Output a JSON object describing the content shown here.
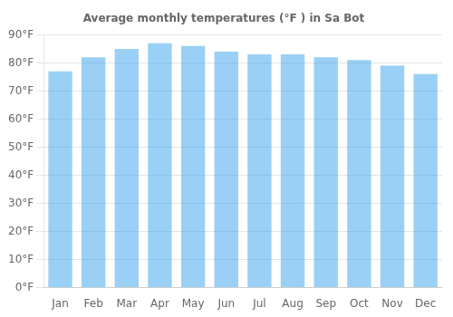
{
  "chart_data": {
    "type": "bar",
    "title": "Average monthly temperatures (°F ) in Sa Bot",
    "categories": [
      "Jan",
      "Feb",
      "Mar",
      "Apr",
      "May",
      "Jun",
      "Jul",
      "Aug",
      "Sep",
      "Oct",
      "Nov",
      "Dec"
    ],
    "values": [
      77,
      82,
      85,
      87,
      86,
      84,
      83,
      83,
      82,
      81,
      79,
      76
    ],
    "ylim": [
      0,
      90
    ],
    "yticks": [
      {
        "value": 0,
        "label": "0°F"
      },
      {
        "value": 10,
        "label": "10°F"
      },
      {
        "value": 20,
        "label": "20°F"
      },
      {
        "value": 30,
        "label": "30°F"
      },
      {
        "value": 40,
        "label": "40°F"
      },
      {
        "value": 50,
        "label": "50°F"
      },
      {
        "value": 60,
        "label": "60°F"
      },
      {
        "value": 70,
        "label": "70°F"
      },
      {
        "value": 80,
        "label": "80°F"
      },
      {
        "value": 90,
        "label": "90°F"
      }
    ],
    "grid": true
  }
}
